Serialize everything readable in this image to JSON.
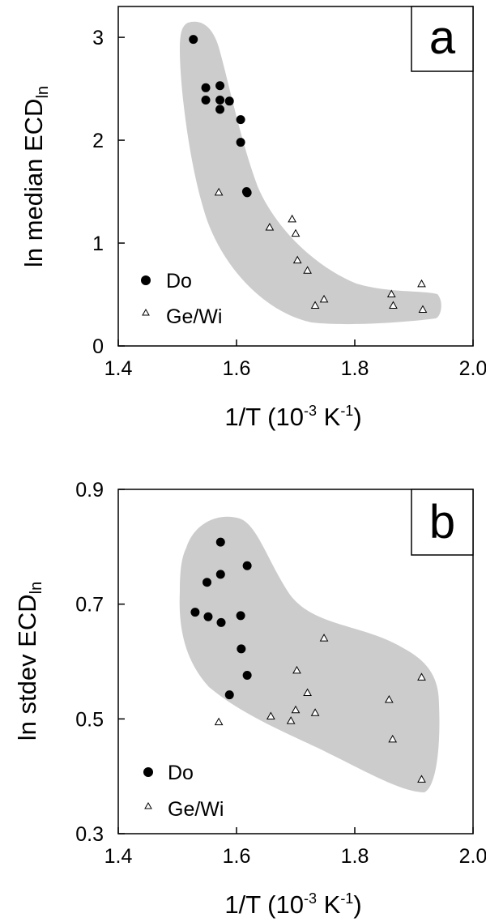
{
  "colors": {
    "region": "#cccccc",
    "do_marker": "#000000",
    "gewi_marker_stroke": "#000000",
    "gewi_marker_fill": "#ffffff"
  },
  "chart_data": [
    {
      "type": "scatter",
      "panel_letter": "a",
      "xlabel": {
        "base": "1/T (10",
        "exp1": "-3",
        "mid": " K",
        "exp2": "-1",
        "end": ")"
      },
      "ylabel": {
        "base": "ln median ECD",
        "sub": "ln"
      },
      "xlim": [
        1.4,
        2.0
      ],
      "ylim": [
        0,
        3.3
      ],
      "xticks": [
        "1.4",
        "1.6",
        "1.8",
        "2.0"
      ],
      "xtick_values": [
        1.4,
        1.6,
        1.8,
        2.0
      ],
      "yticks": [
        "0",
        "1",
        "2",
        "3"
      ],
      "ytick_values": [
        0,
        1,
        2,
        3
      ],
      "grid": false,
      "legend_placement": "bottom-left",
      "series": [
        {
          "name": "Do",
          "marker": "filled-circle",
          "points": [
            [
              1.527,
              2.98
            ],
            [
              1.548,
              2.51
            ],
            [
              1.548,
              2.39
            ],
            [
              1.572,
              2.53
            ],
            [
              1.572,
              2.39
            ],
            [
              1.572,
              2.3
            ],
            [
              1.588,
              2.38
            ],
            [
              1.607,
              2.2
            ],
            [
              1.607,
              1.98
            ],
            [
              1.617,
              1.5
            ],
            [
              1.618,
              1.49
            ]
          ]
        },
        {
          "name": "Ge/Wi",
          "marker": "open-triangle",
          "points": [
            [
              1.57,
              1.49
            ],
            [
              1.656,
              1.15
            ],
            [
              1.694,
              1.23
            ],
            [
              1.7,
              1.09
            ],
            [
              1.703,
              0.83
            ],
            [
              1.72,
              0.73
            ],
            [
              1.733,
              0.39
            ],
            [
              1.748,
              0.45
            ],
            [
              1.862,
              0.5
            ],
            [
              1.865,
              0.39
            ],
            [
              1.913,
              0.6
            ],
            [
              1.915,
              0.35
            ]
          ]
        }
      ]
    },
    {
      "type": "scatter",
      "panel_letter": "b",
      "xlabel": {
        "base": "1/T (10",
        "exp1": "-3",
        "mid": " K",
        "exp2": "-1",
        "end": ")"
      },
      "ylabel": {
        "base": "ln stdev ECD",
        "sub": "ln"
      },
      "xlim": [
        1.4,
        2.0
      ],
      "ylim": [
        0.3,
        0.9
      ],
      "xticks": [
        "1.4",
        "1.6",
        "1.8",
        "2.0"
      ],
      "xtick_values": [
        1.4,
        1.6,
        1.8,
        2.0
      ],
      "yticks": [
        "0.3",
        "0.5",
        "0.7",
        "0.9"
      ],
      "ytick_values": [
        0.3,
        0.5,
        0.7,
        0.9
      ],
      "grid": false,
      "legend_placement": "bottom-left",
      "series": [
        {
          "name": "Do",
          "marker": "filled-circle",
          "points": [
            [
              1.53,
              0.686
            ],
            [
              1.55,
              0.738
            ],
            [
              1.552,
              0.678
            ],
            [
              1.573,
              0.808
            ],
            [
              1.573,
              0.752
            ],
            [
              1.574,
              0.668
            ],
            [
              1.588,
              0.542
            ],
            [
              1.607,
              0.68
            ],
            [
              1.608,
              0.622
            ],
            [
              1.618,
              0.767
            ],
            [
              1.618,
              0.576
            ]
          ]
        },
        {
          "name": "Ge/Wi",
          "marker": "open-triangle",
          "points": [
            [
              1.57,
              0.494
            ],
            [
              1.658,
              0.504
            ],
            [
              1.692,
              0.496
            ],
            [
              1.7,
              0.515
            ],
            [
              1.702,
              0.584
            ],
            [
              1.72,
              0.545
            ],
            [
              1.733,
              0.51
            ],
            [
              1.748,
              0.64
            ],
            [
              1.858,
              0.533
            ],
            [
              1.864,
              0.464
            ],
            [
              1.913,
              0.572
            ],
            [
              1.913,
              0.394
            ]
          ]
        }
      ]
    }
  ],
  "legend": {
    "do_label": "Do",
    "gewi_label": "Ge/Wi"
  }
}
